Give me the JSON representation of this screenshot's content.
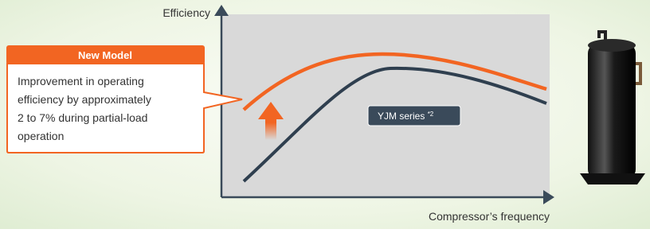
{
  "diagram": {
    "y_axis_label": "Efficiency",
    "x_axis_label": "Compressor’s frequency",
    "callout": {
      "title": "New Model",
      "lines": [
        "Improvement in operating",
        "efficiency by approximately",
        "2 to 7% during partial-load",
        "operation"
      ]
    },
    "series_label": {
      "text": "YJM series",
      "note": "*2"
    }
  }
}
